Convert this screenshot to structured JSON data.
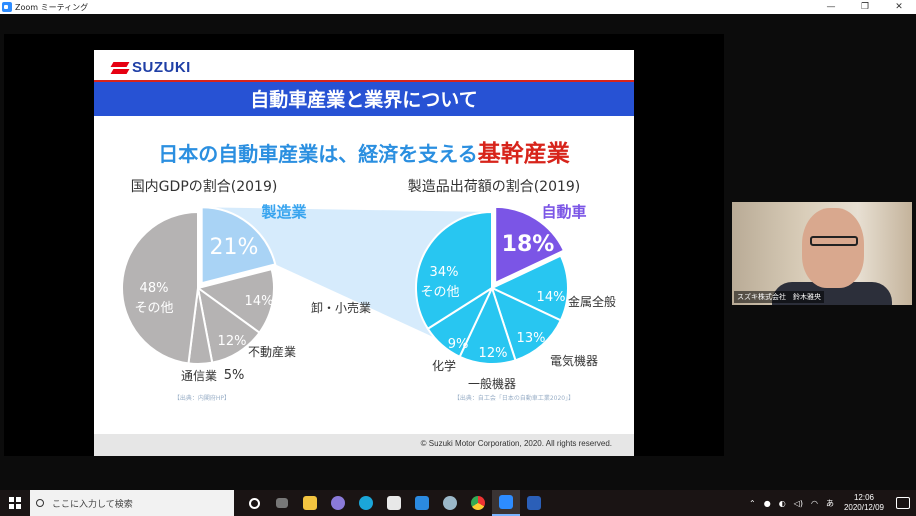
{
  "window": {
    "title": "Zoom ミーティング",
    "ctrl_min": "—",
    "ctrl_restore": "❐",
    "ctrl_close": "✕"
  },
  "slide": {
    "logo_text": "SUZUKI",
    "title": "自動車産業と業界について",
    "headline_part1": "日本の自動車産業は、経済を支える",
    "headline_part2": "基幹産業",
    "footer": "© Suzuki Motor Corporation, 2020. All rights reserved."
  },
  "chart_data": [
    {
      "type": "pie",
      "title": "国内GDPの割合(2019)",
      "source": "【出典：内閣府HP】",
      "highlight_label": "製造業",
      "slices": [
        {
          "label": "製造業",
          "value": 21,
          "value_text": "21%"
        },
        {
          "label": "卸・小売業",
          "value": 14,
          "value_text": "14%"
        },
        {
          "label": "不動産業",
          "value": 12,
          "value_text": "12%"
        },
        {
          "label": "通信業",
          "value": 5,
          "value_text": "5%"
        },
        {
          "label": "その他",
          "value": 48,
          "value_text": "48%"
        }
      ]
    },
    {
      "type": "pie",
      "title": "製造品出荷額の割合(2019)",
      "source": "【出典：自工会「日本の自動車工業2020」】",
      "highlight_label": "自動車",
      "slices": [
        {
          "label": "自動車",
          "value": 18,
          "value_text": "18%"
        },
        {
          "label": "金属全般",
          "value": 14,
          "value_text": "14%"
        },
        {
          "label": "電気機器",
          "value": 13,
          "value_text": "13%"
        },
        {
          "label": "一般機器",
          "value": 12,
          "value_text": "12%"
        },
        {
          "label": "化学",
          "value": 9,
          "value_text": "9%"
        },
        {
          "label": "その他",
          "value": 34,
          "value_text": "34%"
        }
      ]
    }
  ],
  "colors": {
    "grey_pie": "#b5b3b3",
    "grey_highlight": "#a9d3f5",
    "cyan_pie": "#28c6f1",
    "purple": "#7b55e6",
    "bar_blue": "#2752d4",
    "red": "#d7241b"
  },
  "participant": {
    "name": "スズキ株式会社　鈴木雅央"
  },
  "taskbar": {
    "search_placeholder": "ここに入力して検索",
    "ime": "あ",
    "time": "12:06",
    "date": "2020/12/09"
  }
}
